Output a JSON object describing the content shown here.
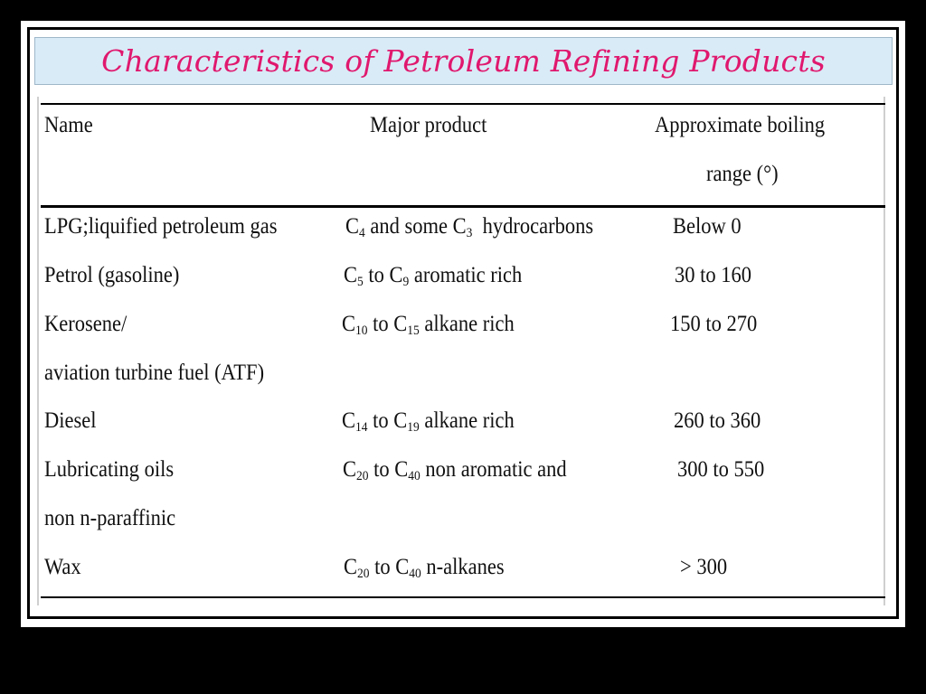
{
  "title": "Characteristics of Petroleum Refining Products",
  "table": {
    "headers": {
      "name": "Name",
      "product": "Major product",
      "boiling_line1": "Approximate boiling",
      "boiling_line2": "range (°)"
    },
    "rows": [
      {
        "name": "LPG;liquified petroleum gas",
        "product": {
          "p1": "C",
          "s1": "4",
          "p2": " and some C",
          "s2": "3",
          "p3": "  hydrocarbons"
        },
        "range": "Below 0"
      },
      {
        "name": "Petrol (gasoline)",
        "product": {
          "p1": "C",
          "s1": "5",
          "p2": " to C",
          "s2": "9",
          "p3": " aromatic rich"
        },
        "range": "30 to 160"
      },
      {
        "name": "Kerosene/",
        "name2": "aviation turbine fuel (ATF)",
        "product": {
          "p1": "C",
          "s1": "10",
          "p2": " to C",
          "s2": "15",
          "p3": " alkane rich"
        },
        "range": "150 to 270"
      },
      {
        "name": "Diesel",
        "product": {
          "p1": "C",
          "s1": "14",
          "p2": " to C",
          "s2": "19",
          "p3": " alkane rich"
        },
        "range": "260 to 360"
      },
      {
        "name": "Lubricating oils",
        "name2": "non n-paraffinic",
        "product": {
          "p1": "C",
          "s1": "20",
          "p2": " to C",
          "s2": "40",
          "p3": " non aromatic and"
        },
        "range": "300 to 550"
      },
      {
        "name": "Wax",
        "product": {
          "p1": "C",
          "s1": "20",
          "p2": " to C",
          "s2": "40",
          "p3": " n-alkanes"
        },
        "range": "> 300"
      }
    ]
  }
}
